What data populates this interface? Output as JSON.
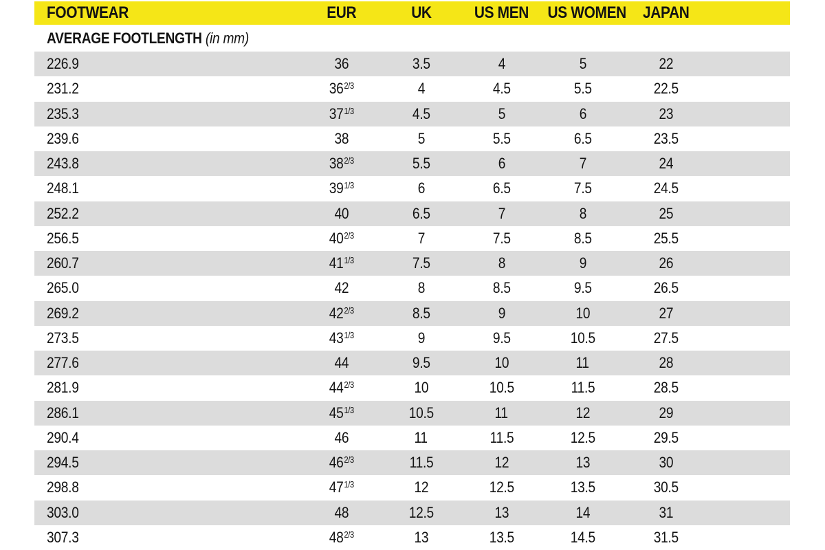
{
  "table": {
    "subheader_label": "AVERAGE FOOTLENGTH",
    "subheader_unit": "(in mm)",
    "col_keys": [
      "footlength",
      "eur",
      "uk",
      "us-men",
      "us-women",
      "japan"
    ]
  },
  "colors": {
    "header_bg": "#F5E617",
    "row_alt_bg": "#DCDCDC",
    "text": "#131313"
  },
  "chart_data": {
    "type": "table",
    "title": "FOOTWEAR",
    "subtitle": "AVERAGE FOOTLENGTH (in mm)",
    "columns": [
      "FOOTWEAR",
      "EUR",
      "UK",
      "US MEN",
      "US WOMEN",
      "JAPAN"
    ],
    "legend_position": "none",
    "grid": "off",
    "rows": [
      [
        "226.9",
        "36",
        "3.5",
        "4",
        "5",
        "22"
      ],
      [
        "231.2",
        "36 2/3",
        "4",
        "4.5",
        "5.5",
        "22.5"
      ],
      [
        "235.3",
        "37 1/3",
        "4.5",
        "5",
        "6",
        "23"
      ],
      [
        "239.6",
        "38",
        "5",
        "5.5",
        "6.5",
        "23.5"
      ],
      [
        "243.8",
        "38 2/3",
        "5.5",
        "6",
        "7",
        "24"
      ],
      [
        "248.1",
        "39 1/3",
        "6",
        "6.5",
        "7.5",
        "24.5"
      ],
      [
        "252.2",
        "40",
        "6.5",
        "7",
        "8",
        "25"
      ],
      [
        "256.5",
        "40 2/3",
        "7",
        "7.5",
        "8.5",
        "25.5"
      ],
      [
        "260.7",
        "41 1/3",
        "7.5",
        "8",
        "9",
        "26"
      ],
      [
        "265.0",
        "42",
        "8",
        "8.5",
        "9.5",
        "26.5"
      ],
      [
        "269.2",
        "42 2/3",
        "8.5",
        "9",
        "10",
        "27"
      ],
      [
        "273.5",
        "43 1/3",
        "9",
        "9.5",
        "10.5",
        "27.5"
      ],
      [
        "277.6",
        "44",
        "9.5",
        "10",
        "11",
        "28"
      ],
      [
        "281.9",
        "44 2/3",
        "10",
        "10.5",
        "11.5",
        "28.5"
      ],
      [
        "286.1",
        "45 1/3",
        "10.5",
        "11",
        "12",
        "29"
      ],
      [
        "290.4",
        "46",
        "11",
        "11.5",
        "12.5",
        "29.5"
      ],
      [
        "294.5",
        "46 2/3",
        "11.5",
        "12",
        "13",
        "30"
      ],
      [
        "298.8",
        "47 1/3",
        "12",
        "12.5",
        "13.5",
        "30.5"
      ],
      [
        "303.0",
        "48",
        "12.5",
        "13",
        "14",
        "31"
      ],
      [
        "307.3",
        "48 2/3",
        "13",
        "13.5",
        "14.5",
        "31.5"
      ]
    ]
  }
}
